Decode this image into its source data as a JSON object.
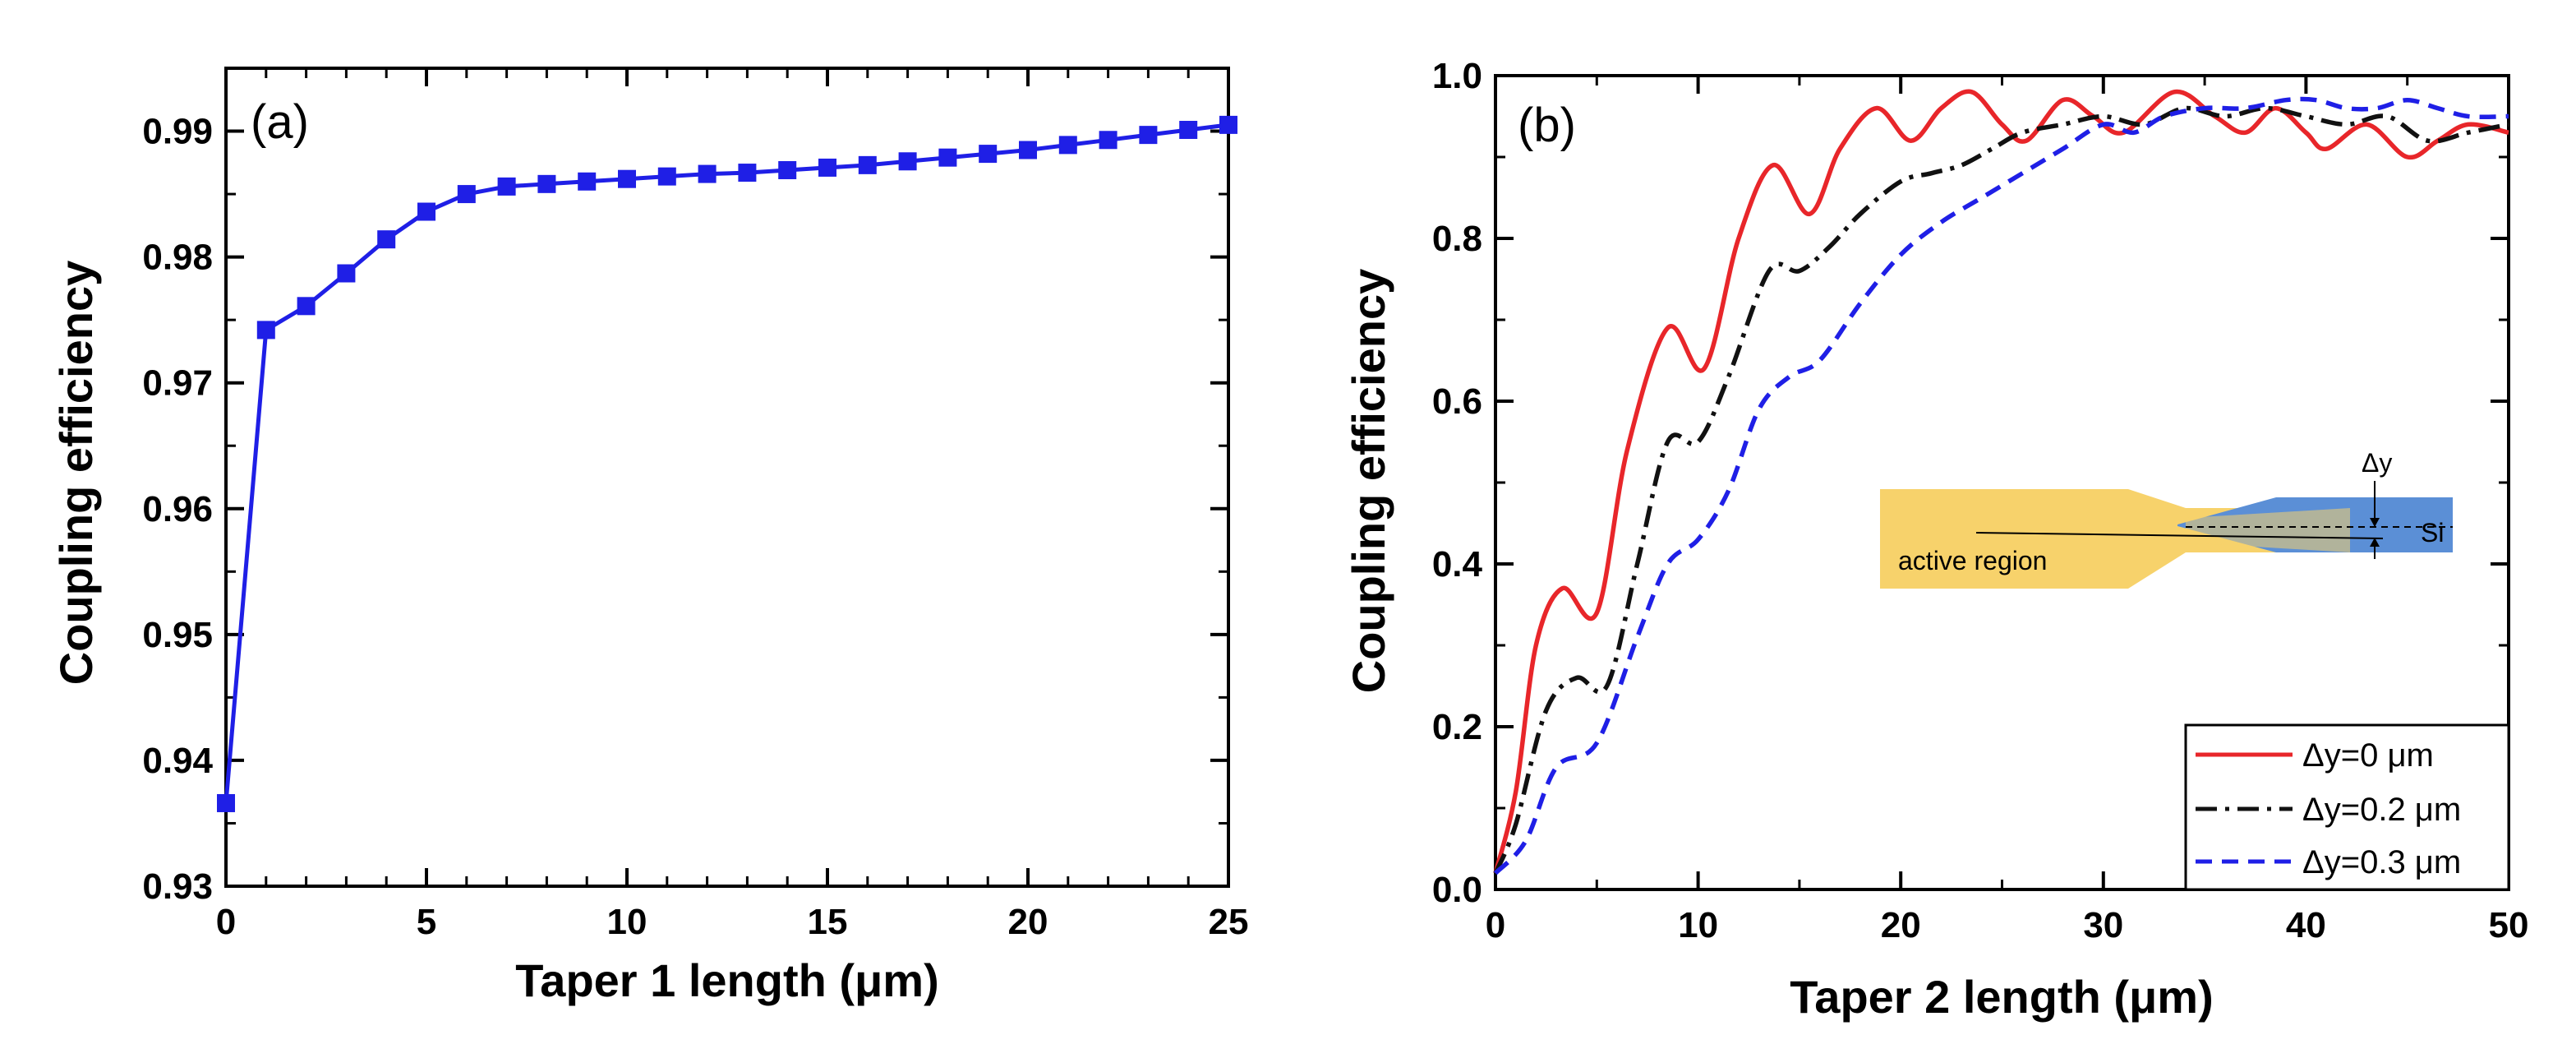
{
  "chart_data": [
    {
      "type": "line",
      "panel_label": "(a)",
      "xlabel": "Taper 1 length (μm)",
      "ylabel": "Coupling efficiency",
      "xlim": [
        0,
        25
      ],
      "ylim": [
        0.93,
        0.995
      ],
      "xticks": [
        0,
        5,
        10,
        15,
        20,
        25
      ],
      "xtick_labels": [
        "0",
        "5",
        "10",
        "15",
        "20",
        "25"
      ],
      "yticks": [
        0.93,
        0.94,
        0.95,
        0.96,
        0.97,
        0.98,
        0.99
      ],
      "ytick_labels": [
        "0.93",
        "0.94",
        "0.95",
        "0.96",
        "0.97",
        "0.98",
        "0.99"
      ],
      "series": [
        {
          "name": "Coupling efficiency",
          "color": "#1f1fe6",
          "marker": "square",
          "x": [
            0,
            1,
            2,
            3,
            4,
            5,
            6,
            7,
            8,
            9,
            10,
            11,
            12,
            13,
            14,
            15,
            16,
            17,
            18,
            19,
            20,
            21,
            22,
            23,
            24,
            25
          ],
          "values": [
            0.9366,
            0.9742,
            0.9761,
            0.9787,
            0.9814,
            0.9836,
            0.985,
            0.9856,
            0.9858,
            0.986,
            0.9862,
            0.9864,
            0.9866,
            0.9867,
            0.9869,
            0.9871,
            0.9873,
            0.9876,
            0.9879,
            0.9882,
            0.9885,
            0.9889,
            0.9893,
            0.9897,
            0.9901,
            0.9905
          ]
        }
      ]
    },
    {
      "type": "line",
      "panel_label": "(b)",
      "xlabel": "Taper 2 length (μm)",
      "ylabel": "Coupling efficiency",
      "xlim": [
        0,
        50
      ],
      "ylim": [
        0.0,
        1.0
      ],
      "xticks": [
        0,
        10,
        20,
        30,
        40,
        50
      ],
      "xtick_labels": [
        "0",
        "10",
        "20",
        "30",
        "40",
        "50"
      ],
      "yticks": [
        0.0,
        0.2,
        0.4,
        0.6,
        0.8,
        1.0
      ],
      "ytick_labels": [
        "0.0",
        "0.2",
        "0.4",
        "0.6",
        "0.8",
        "1.0"
      ],
      "legend": [
        "Δy=0 μm",
        "Δy=0.2 μm",
        "Δy=0.3 μm"
      ],
      "legend_position": "bottom-right",
      "series": [
        {
          "name": "Δy=0 μm",
          "color": "#e8262a",
          "dash": "solid",
          "x": [
            0,
            1,
            2,
            3.3,
            5,
            6.5,
            8.5,
            10.3,
            12,
            13.7,
            15.5,
            17,
            18.8,
            20.5,
            22,
            23.5,
            25,
            26.2,
            28,
            29.5,
            31,
            33.5,
            35.5,
            37,
            38.5,
            40,
            41,
            43,
            45,
            46.5,
            48,
            50
          ],
          "values": [
            0.02,
            0.12,
            0.3,
            0.37,
            0.34,
            0.54,
            0.69,
            0.64,
            0.8,
            0.89,
            0.83,
            0.91,
            0.96,
            0.92,
            0.96,
            0.98,
            0.94,
            0.92,
            0.97,
            0.95,
            0.93,
            0.98,
            0.95,
            0.93,
            0.96,
            0.93,
            0.91,
            0.94,
            0.9,
            0.92,
            0.94,
            0.93
          ]
        },
        {
          "name": "Δy=0.2 μm",
          "color": "#111111",
          "dash": "dash-dot",
          "x": [
            0,
            1,
            2.5,
            4,
            5.5,
            7,
            8.5,
            10,
            11.5,
            13.5,
            15,
            16.5,
            18,
            20,
            21.5,
            23,
            24.5,
            26,
            28,
            30,
            32,
            34,
            36,
            38,
            40,
            42,
            44,
            46,
            48,
            50
          ],
          "values": [
            0.02,
            0.08,
            0.22,
            0.26,
            0.25,
            0.4,
            0.55,
            0.55,
            0.63,
            0.76,
            0.76,
            0.79,
            0.83,
            0.87,
            0.88,
            0.89,
            0.91,
            0.93,
            0.94,
            0.95,
            0.94,
            0.96,
            0.95,
            0.96,
            0.95,
            0.94,
            0.95,
            0.92,
            0.93,
            0.94
          ]
        },
        {
          "name": "Δy=0.3 μm",
          "color": "#1f1fe6",
          "dash": "dashed",
          "x": [
            0,
            1.5,
            3,
            5,
            7,
            8.5,
            10,
            11.5,
            13,
            14.5,
            16,
            18,
            20,
            22,
            24,
            26,
            28,
            30,
            31.5,
            33,
            35,
            37,
            39,
            40.5,
            42,
            43.5,
            45,
            46.5,
            48,
            50
          ],
          "values": [
            0.02,
            0.06,
            0.15,
            0.18,
            0.31,
            0.4,
            0.43,
            0.49,
            0.59,
            0.63,
            0.65,
            0.72,
            0.78,
            0.82,
            0.85,
            0.88,
            0.91,
            0.94,
            0.93,
            0.95,
            0.96,
            0.96,
            0.97,
            0.97,
            0.96,
            0.96,
            0.97,
            0.96,
            0.95,
            0.95
          ]
        }
      ],
      "inset": {
        "label_active": "active region",
        "label_si": "Si",
        "label_dy": "Δy",
        "active_color": "#f7d26b",
        "si_color": "#5b8fd6"
      }
    }
  ]
}
